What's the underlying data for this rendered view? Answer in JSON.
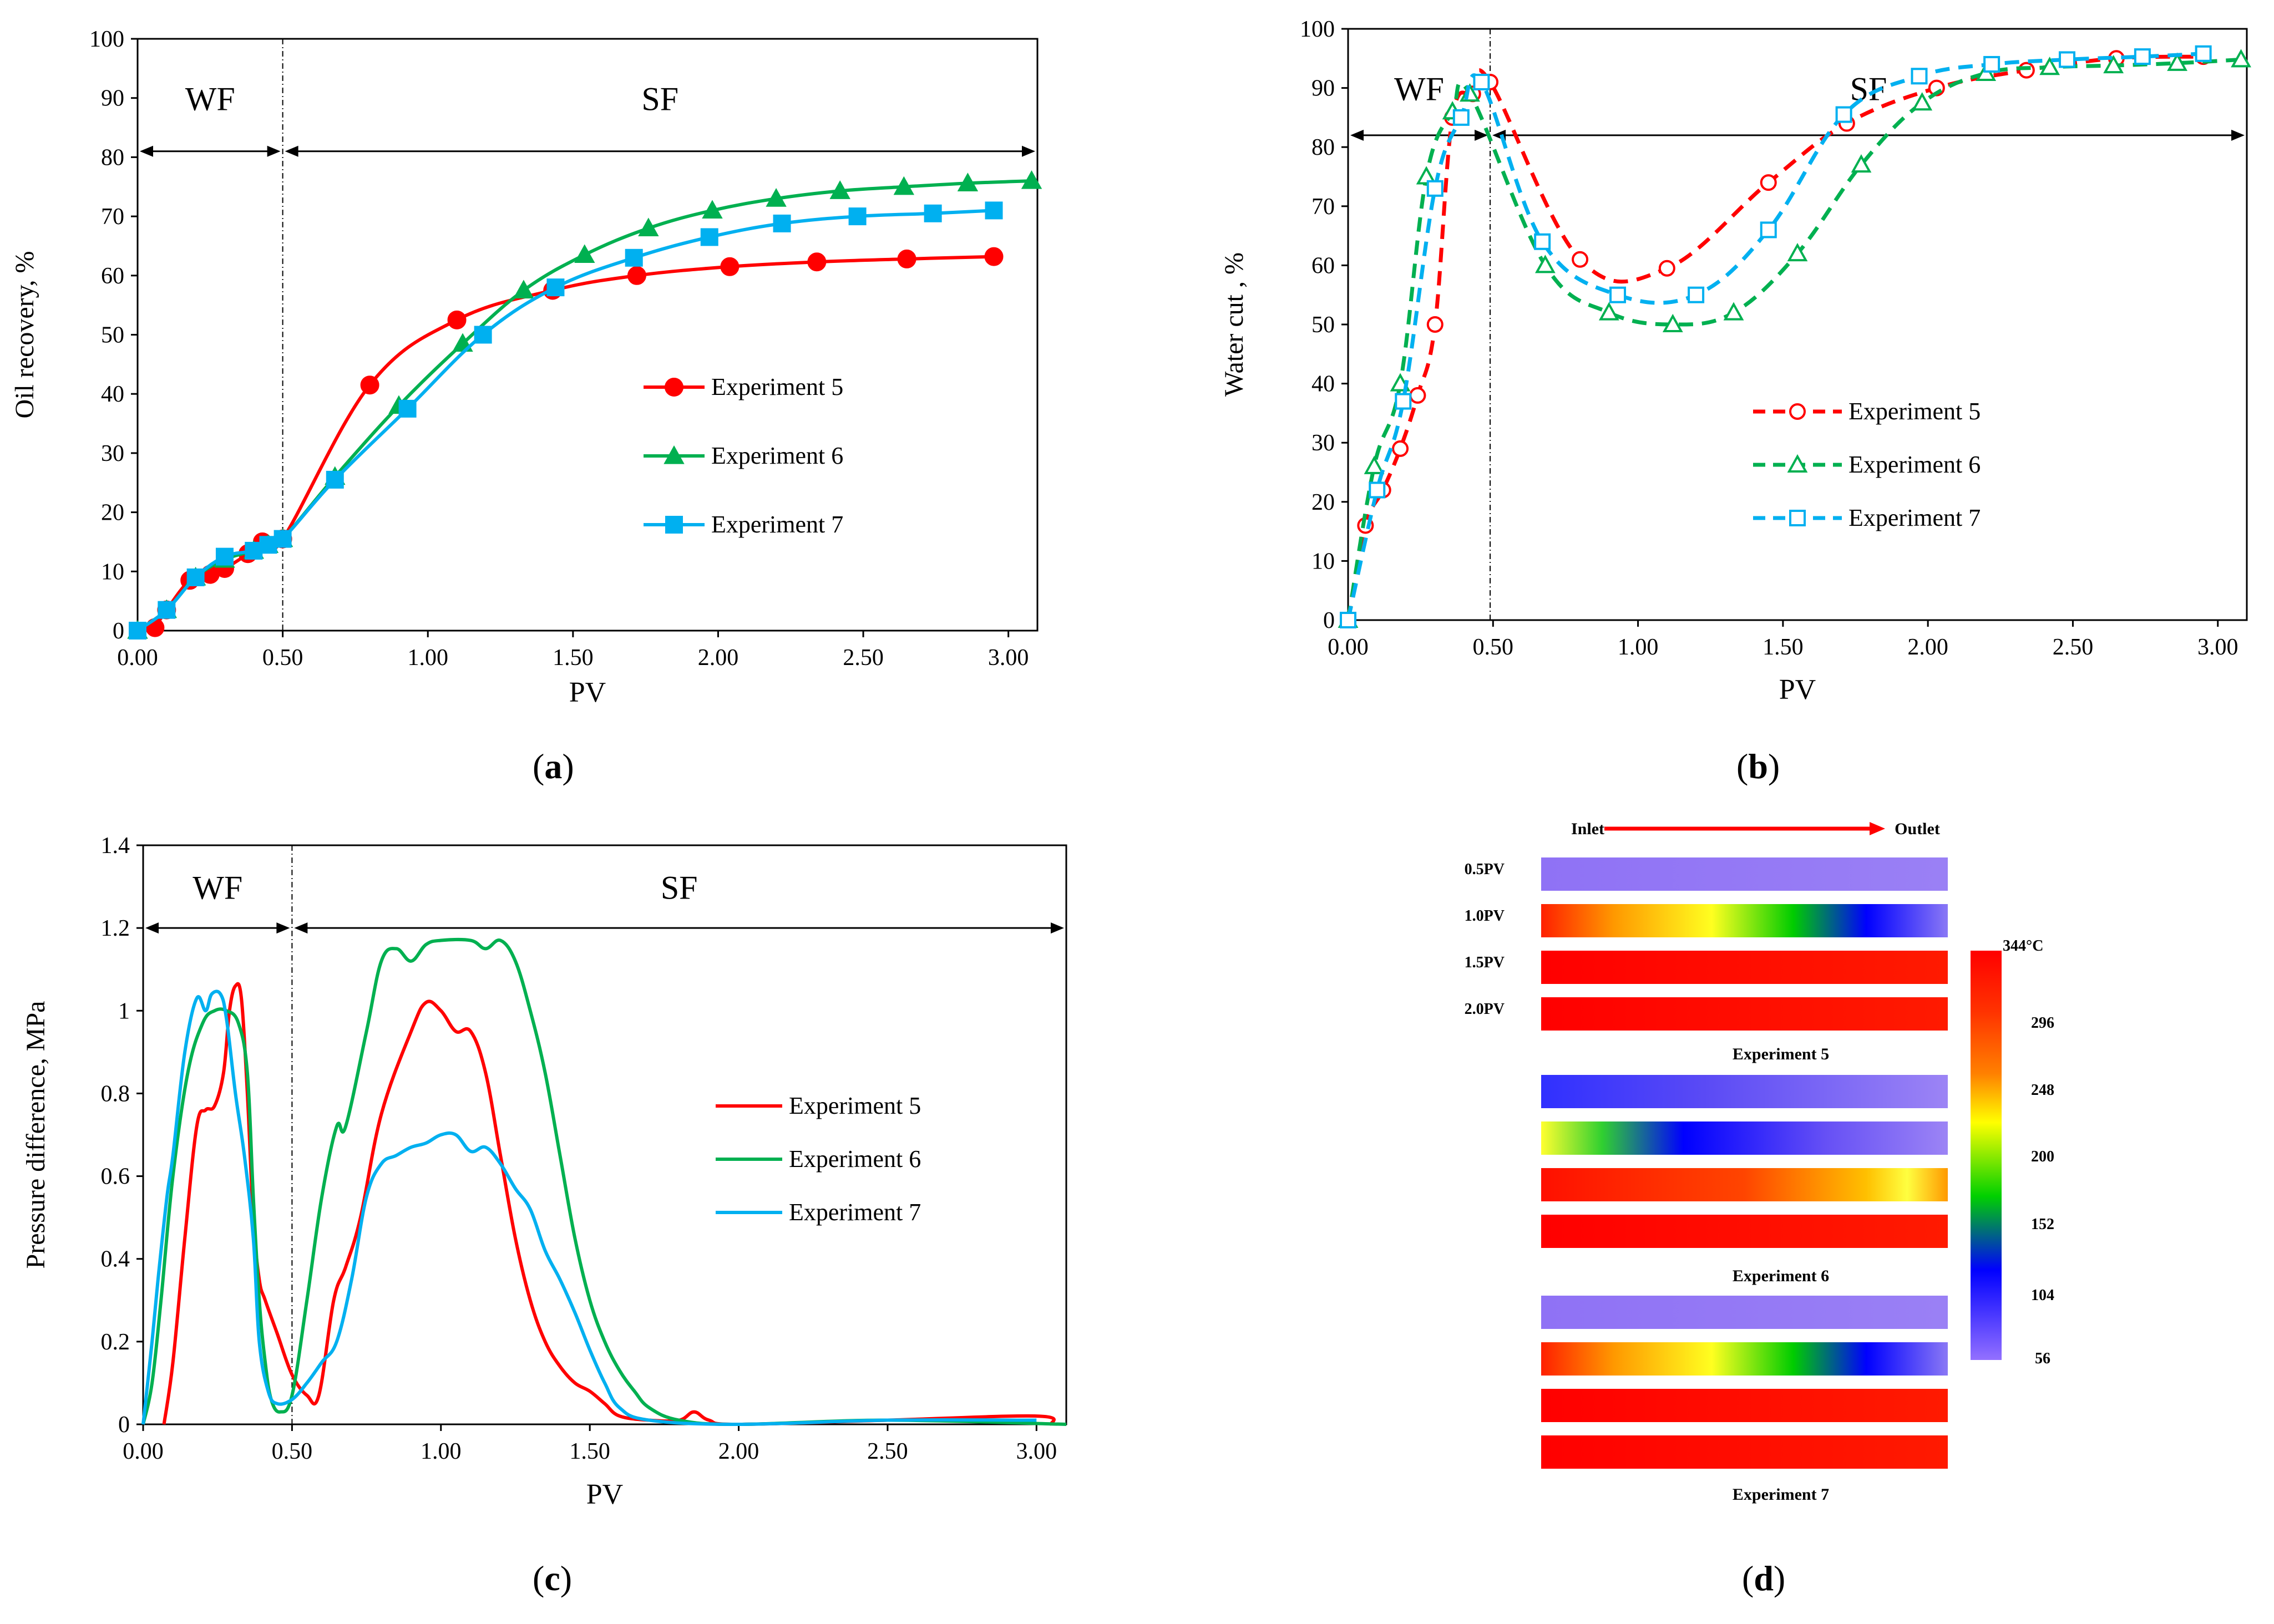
{
  "chart_data": [
    {
      "id": "a",
      "panel_label": "a",
      "type": "line",
      "ylabel": "Oil recovery, %",
      "xlabel": "PV",
      "xlim": [
        0,
        3.1
      ],
      "ylim": [
        0,
        100
      ],
      "xticks": [
        "0.00",
        "0.50",
        "1.00",
        "1.50",
        "2.00",
        "2.50",
        "3.00"
      ],
      "yticks": [
        "0",
        "10",
        "20",
        "30",
        "40",
        "50",
        "60",
        "70",
        "80",
        "90",
        "100"
      ],
      "divider_x": 0.5,
      "regions": [
        {
          "label": "WF",
          "x0": 0,
          "x1": 0.5,
          "arrow_y": 81,
          "label_y": 90
        },
        {
          "label": "SF",
          "x0": 0.5,
          "x1": 3.1,
          "arrow_y": 81,
          "label_y": 90
        }
      ],
      "legend_position": "center-right",
      "series": [
        {
          "name": "Experiment 5",
          "color": "#ff0000",
          "marker": "circle",
          "line": "solid",
          "x": [
            0.06,
            0.1,
            0.18,
            0.25,
            0.3,
            0.38,
            0.43,
            0.5,
            0.8,
            1.1,
            1.43,
            1.72,
            2.04,
            2.34,
            2.65,
            2.95
          ],
          "y": [
            0.5,
            3.5,
            8.5,
            9.5,
            10.5,
            13,
            15,
            15.5,
            41.5,
            52.5,
            57.5,
            60,
            61.5,
            62.3,
            62.8,
            63.2
          ]
        },
        {
          "name": "Experiment 6",
          "color": "#00b050",
          "marker": "triangle",
          "line": "solid",
          "x": [
            0,
            0.1,
            0.2,
            0.3,
            0.4,
            0.45,
            0.5,
            0.68,
            0.9,
            1.12,
            1.33,
            1.54,
            1.76,
            1.98,
            2.2,
            2.42,
            2.64,
            2.86,
            3.08
          ],
          "y": [
            0,
            3.5,
            9,
            12,
            13.5,
            14.5,
            15.5,
            26,
            38,
            48.5,
            57.5,
            63.5,
            68,
            71,
            73,
            74.3,
            75,
            75.6,
            76
          ]
        },
        {
          "name": "Experiment 7",
          "color": "#00b0f0",
          "marker": "square",
          "line": "solid",
          "x": [
            0,
            0.1,
            0.2,
            0.3,
            0.4,
            0.45,
            0.5,
            0.68,
            0.93,
            1.19,
            1.44,
            1.71,
            1.97,
            2.22,
            2.48,
            2.74,
            2.95
          ],
          "y": [
            0,
            3.5,
            9,
            12.5,
            13.5,
            14.5,
            15.5,
            25.5,
            37.5,
            50,
            58,
            63,
            66.5,
            68.8,
            70,
            70.5,
            71
          ]
        }
      ]
    },
    {
      "id": "b",
      "panel_label": "b",
      "type": "line",
      "ylabel": "Water cut , %",
      "xlabel": "PV",
      "xlim": [
        0,
        3.1
      ],
      "ylim": [
        0,
        100
      ],
      "xticks": [
        "0.00",
        "0.50",
        "1.00",
        "1.50",
        "2.00",
        "2.50",
        "3.00"
      ],
      "yticks": [
        "0",
        "10",
        "20",
        "30",
        "40",
        "50",
        "60",
        "70",
        "80",
        "90",
        "100"
      ],
      "divider_x": 0.49,
      "regions": [
        {
          "label": "WF",
          "x0": 0,
          "x1": 0.49,
          "arrow_y": 82,
          "label_y": 90
        },
        {
          "label": "SF",
          "x0": 0.49,
          "x1": 3.1,
          "arrow_y": 82,
          "label_y": 90
        }
      ],
      "legend_position": "center-right",
      "series": [
        {
          "name": "Experiment 5",
          "color": "#ff0000",
          "marker": "circle-open",
          "line": "dashed",
          "x": [
            0,
            0.06,
            0.12,
            0.18,
            0.24,
            0.3,
            0.36,
            0.43,
            0.49,
            0.8,
            1.1,
            1.45,
            1.72,
            2.03,
            2.34,
            2.65,
            2.95
          ],
          "y": [
            0,
            16,
            22,
            29,
            38,
            50,
            85,
            89,
            91,
            61,
            59.5,
            74,
            84,
            90,
            93,
            95,
            95.3
          ]
        },
        {
          "name": "Experiment 6",
          "color": "#00b050",
          "marker": "triangle-open",
          "line": "dashed",
          "x": [
            0,
            0.09,
            0.18,
            0.27,
            0.36,
            0.42,
            0.68,
            0.9,
            1.12,
            1.33,
            1.55,
            1.77,
            1.98,
            2.2,
            2.42,
            2.64,
            2.86,
            3.08
          ],
          "y": [
            0,
            26,
            40,
            75,
            86,
            89,
            60,
            52,
            50,
            52,
            62,
            77,
            87.5,
            92.5,
            93.5,
            93.8,
            94.2,
            94.8
          ]
        },
        {
          "name": "Experiment 7",
          "color": "#00b0f0",
          "marker": "square-open",
          "line": "dashed",
          "x": [
            0,
            0.1,
            0.19,
            0.3,
            0.39,
            0.46,
            0.67,
            0.93,
            1.2,
            1.45,
            1.71,
            1.97,
            2.22,
            2.48,
            2.74,
            2.95
          ],
          "y": [
            0,
            22,
            37,
            73,
            85,
            91,
            64,
            55,
            55,
            66,
            85.5,
            92,
            94,
            94.8,
            95.3,
            95.8
          ]
        }
      ]
    },
    {
      "id": "c",
      "panel_label": "c",
      "type": "line",
      "ylabel": "Pressure difference, MPa",
      "xlabel": "PV",
      "xlim": [
        0,
        3.1
      ],
      "ylim": [
        0,
        1.4
      ],
      "xticks": [
        "0.00",
        "0.50",
        "1.00",
        "1.50",
        "2.00",
        "2.50",
        "3.00"
      ],
      "yticks": [
        "0",
        "0.2",
        "0.4",
        "0.6",
        "0.8",
        "1",
        "1.2",
        "1.4"
      ],
      "divider_x": 0.5,
      "regions": [
        {
          "label": "WF",
          "x0": 0,
          "x1": 0.5,
          "arrow_y": 1.2,
          "label_y": 1.3
        },
        {
          "label": "SF",
          "x0": 0.5,
          "x1": 3.1,
          "arrow_y": 1.2,
          "label_y": 1.3
        }
      ],
      "legend_position": "center-right",
      "series": [
        {
          "name": "Experiment 5",
          "color": "#ff0000",
          "marker": "none",
          "line": "solid",
          "x": [
            0.07,
            0.1,
            0.14,
            0.18,
            0.21,
            0.24,
            0.27,
            0.29,
            0.31,
            0.33,
            0.35,
            0.37,
            0.39,
            0.41,
            0.45,
            0.5,
            0.55,
            0.59,
            0.64,
            0.68,
            0.73,
            0.8,
            0.9,
            0.95,
            1.0,
            1.05,
            1.1,
            1.15,
            1.2,
            1.25,
            1.3,
            1.35,
            1.4,
            1.45,
            1.5,
            1.55,
            1.6,
            1.7,
            1.8,
            1.85,
            1.9,
            2.0,
            2.5,
            3.0,
            3.05
          ],
          "y": [
            0,
            0.15,
            0.45,
            0.72,
            0.76,
            0.77,
            0.85,
            1.0,
            1.06,
            1.03,
            0.8,
            0.5,
            0.35,
            0.3,
            0.22,
            0.12,
            0.07,
            0.07,
            0.3,
            0.38,
            0.5,
            0.75,
            0.95,
            1.02,
            1.0,
            0.95,
            0.95,
            0.85,
            0.65,
            0.45,
            0.3,
            0.2,
            0.14,
            0.1,
            0.08,
            0.05,
            0.02,
            0.01,
            0.01,
            0.03,
            0.01,
            0.0,
            0.01,
            0.02,
            0.0
          ]
        },
        {
          "name": "Experiment 6",
          "color": "#00b050",
          "marker": "none",
          "line": "solid",
          "x": [
            0,
            0.03,
            0.06,
            0.1,
            0.15,
            0.2,
            0.24,
            0.28,
            0.32,
            0.35,
            0.37,
            0.39,
            0.41,
            0.43,
            0.46,
            0.5,
            0.55,
            0.6,
            0.65,
            0.68,
            0.75,
            0.8,
            0.85,
            0.9,
            0.95,
            1.0,
            1.1,
            1.15,
            1.2,
            1.25,
            1.3,
            1.35,
            1.4,
            1.45,
            1.5,
            1.55,
            1.6,
            1.65,
            1.7,
            1.8,
            2.0,
            2.5,
            3.1
          ],
          "y": [
            0,
            0.1,
            0.3,
            0.6,
            0.85,
            0.97,
            1.0,
            1.0,
            0.97,
            0.85,
            0.55,
            0.3,
            0.15,
            0.06,
            0.03,
            0.07,
            0.3,
            0.55,
            0.72,
            0.72,
            0.95,
            1.12,
            1.15,
            1.12,
            1.16,
            1.17,
            1.17,
            1.15,
            1.17,
            1.12,
            1.0,
            0.85,
            0.65,
            0.45,
            0.3,
            0.2,
            0.13,
            0.08,
            0.04,
            0.01,
            0.0,
            0.01,
            0.0
          ]
        },
        {
          "name": "Experiment 7",
          "color": "#00b0f0",
          "marker": "none",
          "line": "solid",
          "x": [
            0,
            0.03,
            0.05,
            0.08,
            0.1,
            0.14,
            0.18,
            0.21,
            0.23,
            0.26,
            0.28,
            0.31,
            0.34,
            0.37,
            0.39,
            0.42,
            0.45,
            0.5,
            0.55,
            0.6,
            0.65,
            0.7,
            0.75,
            0.8,
            0.85,
            0.9,
            0.95,
            1.0,
            1.05,
            1.1,
            1.15,
            1.2,
            1.25,
            1.3,
            1.35,
            1.4,
            1.45,
            1.5,
            1.55,
            1.6,
            1.7,
            2.0,
            2.5,
            3.0
          ],
          "y": [
            0,
            0.2,
            0.35,
            0.55,
            0.65,
            0.9,
            1.03,
            1.0,
            1.04,
            1.04,
            0.98,
            0.8,
            0.65,
            0.45,
            0.2,
            0.08,
            0.05,
            0.06,
            0.1,
            0.15,
            0.2,
            0.35,
            0.55,
            0.63,
            0.65,
            0.67,
            0.68,
            0.7,
            0.7,
            0.66,
            0.67,
            0.63,
            0.57,
            0.52,
            0.42,
            0.35,
            0.27,
            0.18,
            0.1,
            0.04,
            0.01,
            0.0,
            0.01,
            0.01
          ]
        }
      ]
    }
  ],
  "panel_d": {
    "panel_label": "d",
    "flow_labels": {
      "inlet": "Inlet",
      "outlet": "Outlet"
    },
    "row_labels": [
      "0.5PV",
      "1.0PV",
      "1.5PV",
      "2.0PV"
    ],
    "group_titles": [
      "Experiment 5",
      "Experiment 6",
      "Experiment 7"
    ],
    "colorbar": {
      "ticks": [
        "344°C",
        "296",
        "248",
        "200",
        "152",
        "104",
        "56"
      ],
      "gradient": [
        "#ff0000",
        "#ff3300",
        "#ff8000",
        "#ffff00",
        "#00d000",
        "#0000ff",
        "#9370ff"
      ]
    },
    "bars": [
      [
        "uniform-violet",
        "mixed-front",
        "hot",
        "hot"
      ],
      [
        "blue-violet",
        "green-blue-violet",
        "hot-warm-end",
        "hot"
      ],
      [
        "uniform-violet",
        "mixed-front",
        "hot",
        "hot"
      ]
    ]
  }
}
